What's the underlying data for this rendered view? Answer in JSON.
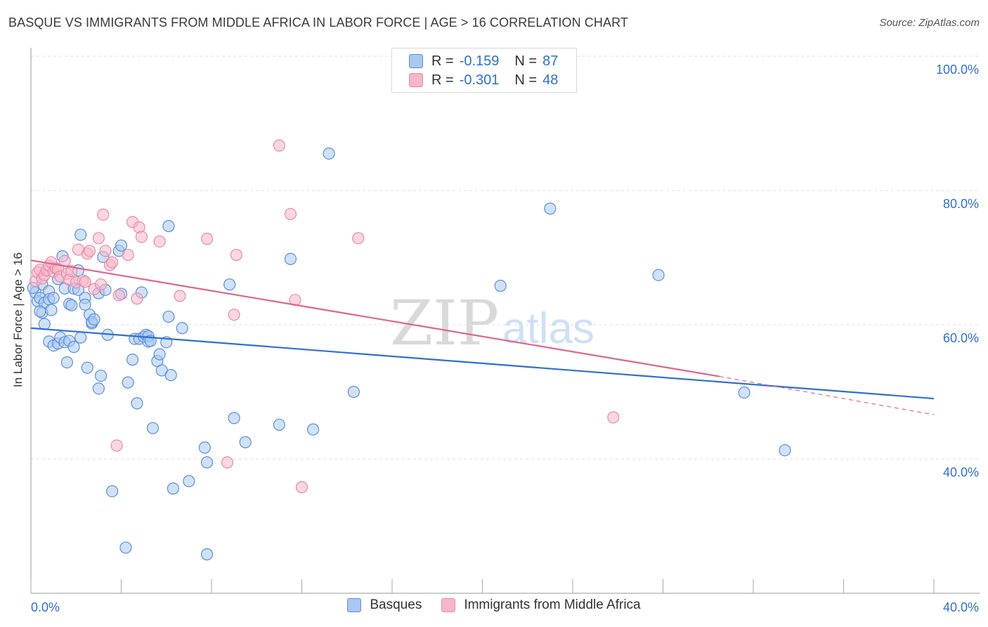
{
  "chart_data": {
    "type": "scatter",
    "title": "BASQUE VS IMMIGRANTS FROM MIDDLE AFRICA IN LABOR FORCE | AGE > 16 CORRELATION CHART",
    "source": "Source: ZipAtlas.com",
    "ylabel": "In Labor Force | Age > 16",
    "xlim": [
      0,
      40
    ],
    "ylim": [
      20,
      100
    ],
    "x_tick_labels": [
      "0.0%",
      "40.0%"
    ],
    "y_ticks": [
      40,
      60,
      80,
      100
    ],
    "y_tick_labels": [
      "40.0%",
      "60.0%",
      "80.0%",
      "100.0%"
    ],
    "grid": true,
    "legend_position": "top-center",
    "watermark": "ZIPatlas",
    "legend_stats": [
      {
        "r_label": "R =",
        "r_value": "-0.159",
        "n_label": "N =",
        "n_value": "87"
      },
      {
        "r_label": "R =",
        "r_value": "-0.301",
        "n_label": "N =",
        "n_value": "48"
      }
    ],
    "series": [
      {
        "name": "Basques",
        "fill": "#aac8f2",
        "stroke": "#5a8fdc",
        "line_color": "#2f6fd0",
        "trend": {
          "x_start": 0,
          "y_start": 59.5,
          "x_end": 40,
          "y_end": 49.0
        },
        "points": [
          [
            0.2,
            64.8
          ],
          [
            0.3,
            63.5
          ],
          [
            0.4,
            64.0
          ],
          [
            0.5,
            66.0
          ],
          [
            0.5,
            61.8
          ],
          [
            0.6,
            63.3
          ],
          [
            0.6,
            60.1
          ],
          [
            0.8,
            65.0
          ],
          [
            0.8,
            63.8
          ],
          [
            0.8,
            57.5
          ],
          [
            0.9,
            62.2
          ],
          [
            1.0,
            64.0
          ],
          [
            1.0,
            56.9
          ],
          [
            1.2,
            66.8
          ],
          [
            1.2,
            57.2
          ],
          [
            1.3,
            58.1
          ],
          [
            1.4,
            70.2
          ],
          [
            1.5,
            65.4
          ],
          [
            1.5,
            57.4
          ],
          [
            1.6,
            54.4
          ],
          [
            1.7,
            63.1
          ],
          [
            1.7,
            57.6
          ],
          [
            1.8,
            62.9
          ],
          [
            1.9,
            65.4
          ],
          [
            1.9,
            56.7
          ],
          [
            2.1,
            68.1
          ],
          [
            2.1,
            65.2
          ],
          [
            2.2,
            58.1
          ],
          [
            2.2,
            73.4
          ],
          [
            2.4,
            64.0
          ],
          [
            2.4,
            63.0
          ],
          [
            2.5,
            53.6
          ],
          [
            2.6,
            61.5
          ],
          [
            2.7,
            60.2
          ],
          [
            2.7,
            60.4
          ],
          [
            2.8,
            60.8
          ],
          [
            3.0,
            64.7
          ],
          [
            3.0,
            50.5
          ],
          [
            3.1,
            52.4
          ],
          [
            3.2,
            70.1
          ],
          [
            3.3,
            65.2
          ],
          [
            3.4,
            58.5
          ],
          [
            3.6,
            35.2
          ],
          [
            3.9,
            71.0
          ],
          [
            4.0,
            64.6
          ],
          [
            4.0,
            71.8
          ],
          [
            4.2,
            26.8
          ],
          [
            4.3,
            51.4
          ],
          [
            4.5,
            54.8
          ],
          [
            4.6,
            57.9
          ],
          [
            4.7,
            48.3
          ],
          [
            4.8,
            57.9
          ],
          [
            4.9,
            64.8
          ],
          [
            5.0,
            58.2
          ],
          [
            5.1,
            58.5
          ],
          [
            5.2,
            58.3
          ],
          [
            5.2,
            57.5
          ],
          [
            5.3,
            57.6
          ],
          [
            5.4,
            44.6
          ],
          [
            5.6,
            54.6
          ],
          [
            5.7,
            55.6
          ],
          [
            5.8,
            53.2
          ],
          [
            6.0,
            57.4
          ],
          [
            6.1,
            61.2
          ],
          [
            6.1,
            74.7
          ],
          [
            6.2,
            52.5
          ],
          [
            6.3,
            35.6
          ],
          [
            6.7,
            59.5
          ],
          [
            7.0,
            36.7
          ],
          [
            7.7,
            41.7
          ],
          [
            7.8,
            39.5
          ],
          [
            7.8,
            25.8
          ],
          [
            8.8,
            66.0
          ],
          [
            9.0,
            46.1
          ],
          [
            9.5,
            42.5
          ],
          [
            11.0,
            45.1
          ],
          [
            11.5,
            69.8
          ],
          [
            12.5,
            44.4
          ],
          [
            13.2,
            85.5
          ],
          [
            14.3,
            50.0
          ],
          [
            20.8,
            65.8
          ],
          [
            23.0,
            77.3
          ],
          [
            27.8,
            67.4
          ],
          [
            31.6,
            49.9
          ],
          [
            33.4,
            41.3
          ],
          [
            0.1,
            65.5
          ],
          [
            0.4,
            62.0
          ]
        ]
      },
      {
        "name": "Immigrants from Middle Africa",
        "fill": "#f7b6c9",
        "stroke": "#e88aa6",
        "line_color": "#e0648c",
        "trend": {
          "x_start": 0,
          "y_start": 69.6,
          "x_end": 30.5,
          "y_end": 52.3
        },
        "trend_dashed": {
          "x_start": 30.5,
          "y_start": 52.3,
          "x_end": 40,
          "y_end": 46.6
        },
        "points": [
          [
            0.2,
            66.5
          ],
          [
            0.3,
            67.8
          ],
          [
            0.4,
            68.2
          ],
          [
            0.5,
            66.9
          ],
          [
            0.6,
            67.4
          ],
          [
            0.7,
            68.1
          ],
          [
            0.8,
            68.8
          ],
          [
            0.9,
            69.3
          ],
          [
            1.0,
            67.9
          ],
          [
            1.1,
            68.4
          ],
          [
            1.2,
            68.3
          ],
          [
            1.3,
            67.2
          ],
          [
            1.5,
            69.5
          ],
          [
            1.6,
            67.6
          ],
          [
            1.7,
            66.7
          ],
          [
            1.8,
            68.0
          ],
          [
            2.0,
            66.3
          ],
          [
            2.1,
            71.2
          ],
          [
            2.3,
            66.6
          ],
          [
            2.4,
            66.4
          ],
          [
            2.5,
            70.6
          ],
          [
            2.6,
            71.0
          ],
          [
            2.8,
            65.3
          ],
          [
            3.0,
            72.9
          ],
          [
            3.1,
            66.0
          ],
          [
            3.2,
            76.4
          ],
          [
            3.3,
            71.0
          ],
          [
            3.5,
            68.9
          ],
          [
            3.6,
            69.3
          ],
          [
            3.8,
            42.0
          ],
          [
            3.9,
            64.4
          ],
          [
            4.3,
            70.4
          ],
          [
            4.5,
            75.3
          ],
          [
            4.7,
            63.9
          ],
          [
            4.8,
            74.5
          ],
          [
            4.9,
            73.1
          ],
          [
            5.7,
            72.4
          ],
          [
            6.6,
            64.3
          ],
          [
            7.8,
            72.8
          ],
          [
            8.7,
            39.5
          ],
          [
            9.0,
            61.5
          ],
          [
            9.1,
            70.4
          ],
          [
            11.0,
            86.7
          ],
          [
            11.5,
            76.5
          ],
          [
            11.7,
            63.7
          ],
          [
            12.0,
            35.8
          ],
          [
            14.5,
            72.9
          ],
          [
            25.8,
            46.2
          ]
        ]
      }
    ]
  }
}
